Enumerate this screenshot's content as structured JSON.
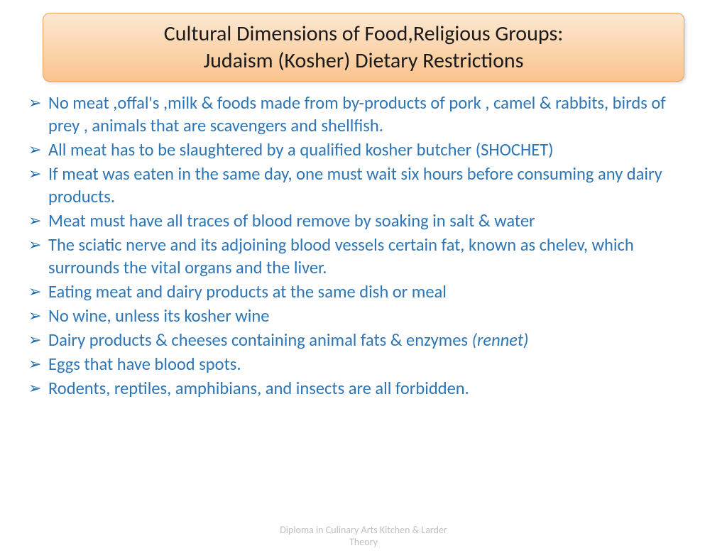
{
  "colors": {
    "title_bg_top": "#fde8d2",
    "title_bg_bottom": "#f9c48d",
    "title_border": "#e8a35a",
    "title_text": "#1a1a1a",
    "bullet_icon": "#1f6fb3",
    "bullet_text": "#2e75b6",
    "footer_text": "#bfbfbf"
  },
  "fonts": {
    "title_size": 30,
    "bullet_size": 24.5,
    "footer_size": 14
  },
  "title": {
    "line1": "Cultural Dimensions of Food,Religious Groups:",
    "line2": "Judaism (Kosher)  Dietary Restrictions"
  },
  "bullets": [
    {
      "text": "No meat ,offal's ,milk & foods made from by-products  of  pork , camel  & rabbits, birds of prey , animals  that are scavengers  and shellfish."
    },
    {
      "text": "All meat has to be slaughtered by a qualified kosher butcher (SHOCHET)"
    },
    {
      "text": "If meat was eaten in the same day, one must wait six hours before consuming any dairy products."
    },
    {
      "text": "Meat must have all traces of blood remove by soaking in salt & water"
    },
    {
      "text": "The sciatic nerve and its adjoining blood vessels certain fat, known as chelev,  which surrounds the vital organs and the liver."
    },
    {
      "text": "Eating meat and dairy products at the same dish or  meal"
    },
    {
      "text": "No wine, unless its kosher wine"
    },
    {
      "text": "Dairy products & cheeses  containing animal fats & enzymes ",
      "italic_suffix": "(rennet)"
    },
    {
      "text": "Eggs that have blood spots."
    },
    {
      "text": "Rodents, reptiles, amphibians, and insects  are all forbidden."
    }
  ],
  "footer": {
    "line1": "Diploma in Culinary Arts  Kitchen & Larder",
    "line2": "Theory"
  }
}
